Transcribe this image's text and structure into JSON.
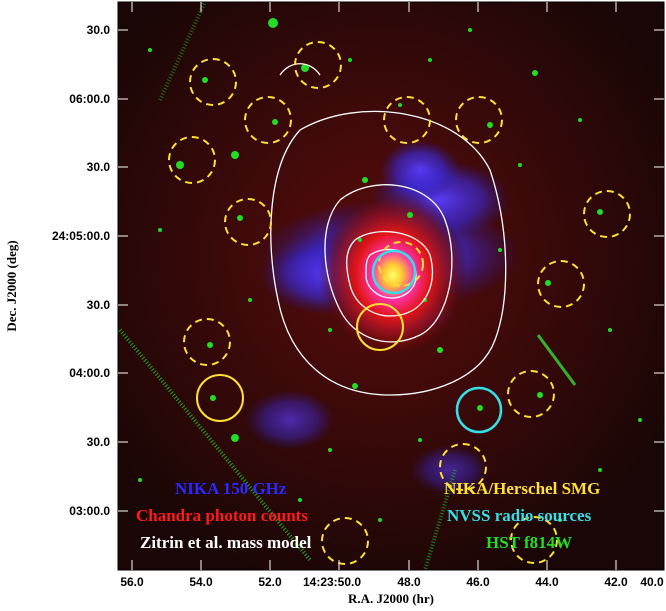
{
  "figure": {
    "x_axis_title": "R.A. J2000 (hr)",
    "y_axis_title": "Dec. J2000 (deg)",
    "x_ticks": [
      "56.0",
      "54.0",
      "52.0",
      "14:23:50.0",
      "48.0",
      "46.0",
      "44.0",
      "42.0",
      "40.0"
    ],
    "y_ticks": [
      "30.0",
      "06:00.0",
      "30.0",
      "24:05:00.0",
      "30.0",
      "04:00.0",
      "30.0",
      "03:00.0"
    ],
    "legend": {
      "nika": "NIKA 150 GHz",
      "chandra": "Chandra photon counts",
      "zitrin": "Zitrin et al. mass model",
      "smg": "NIKA/Herschel SMG",
      "nvss": "NVSS radio sources",
      "hst": "HST f814W"
    },
    "colors": {
      "nika": "#2a2aff",
      "chandra": "#ff1a1a",
      "zitrin": "#ffffff",
      "smg": "#ffe033",
      "nvss": "#33e0e8",
      "hst": "#22dd22",
      "background": "#1e0707"
    }
  }
}
